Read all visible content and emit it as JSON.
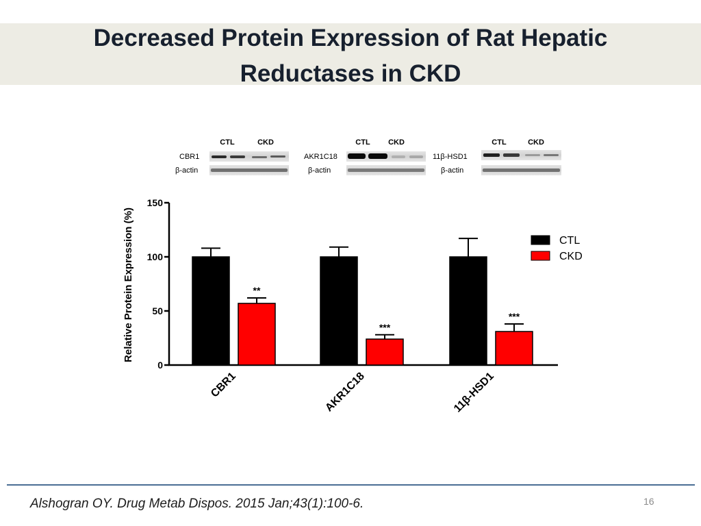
{
  "slide": {
    "title_line1": "Decreased Protein Expression of Rat Hepatic",
    "title_line2": "Reductases in CKD",
    "citation": "Alshogran OY. Drug Metab Dispos. 2015 Jan;43(1):100-6.",
    "page_number": "16"
  },
  "blots": [
    {
      "protein": "CBR1",
      "control": "β-actin",
      "col1": "CTL",
      "col2": "CKD"
    },
    {
      "protein": "AKR1C18",
      "control": "β-actin",
      "col1": "CTL",
      "col2": "CKD"
    },
    {
      "protein": "11β-HSD1",
      "control": "β-actin",
      "col1": "CTL",
      "col2": "CKD"
    }
  ],
  "colors": {
    "ctl": "#000000",
    "ckd": "#ff0000",
    "title_band": "#edece4",
    "footer_rule": "#4a6d94"
  },
  "chart_data": {
    "type": "bar",
    "title": "",
    "xlabel": "",
    "ylabel": "Relative Protein Expression (%)",
    "ylim": [
      0,
      150
    ],
    "yticks": [
      0,
      50,
      100,
      150
    ],
    "grid": false,
    "legend_position": "top-right",
    "categories": [
      "CBR1",
      "AKR1C18",
      "11β-HSD1"
    ],
    "series": [
      {
        "name": "CTL",
        "color": "#000000",
        "values": [
          100,
          100,
          100
        ],
        "errors": [
          8,
          9,
          17
        ],
        "significance": [
          "",
          "",
          ""
        ]
      },
      {
        "name": "CKD",
        "color": "#ff0000",
        "values": [
          57,
          24,
          31
        ],
        "errors": [
          5,
          4,
          7
        ],
        "significance": [
          "**",
          "***",
          "***"
        ]
      }
    ]
  }
}
